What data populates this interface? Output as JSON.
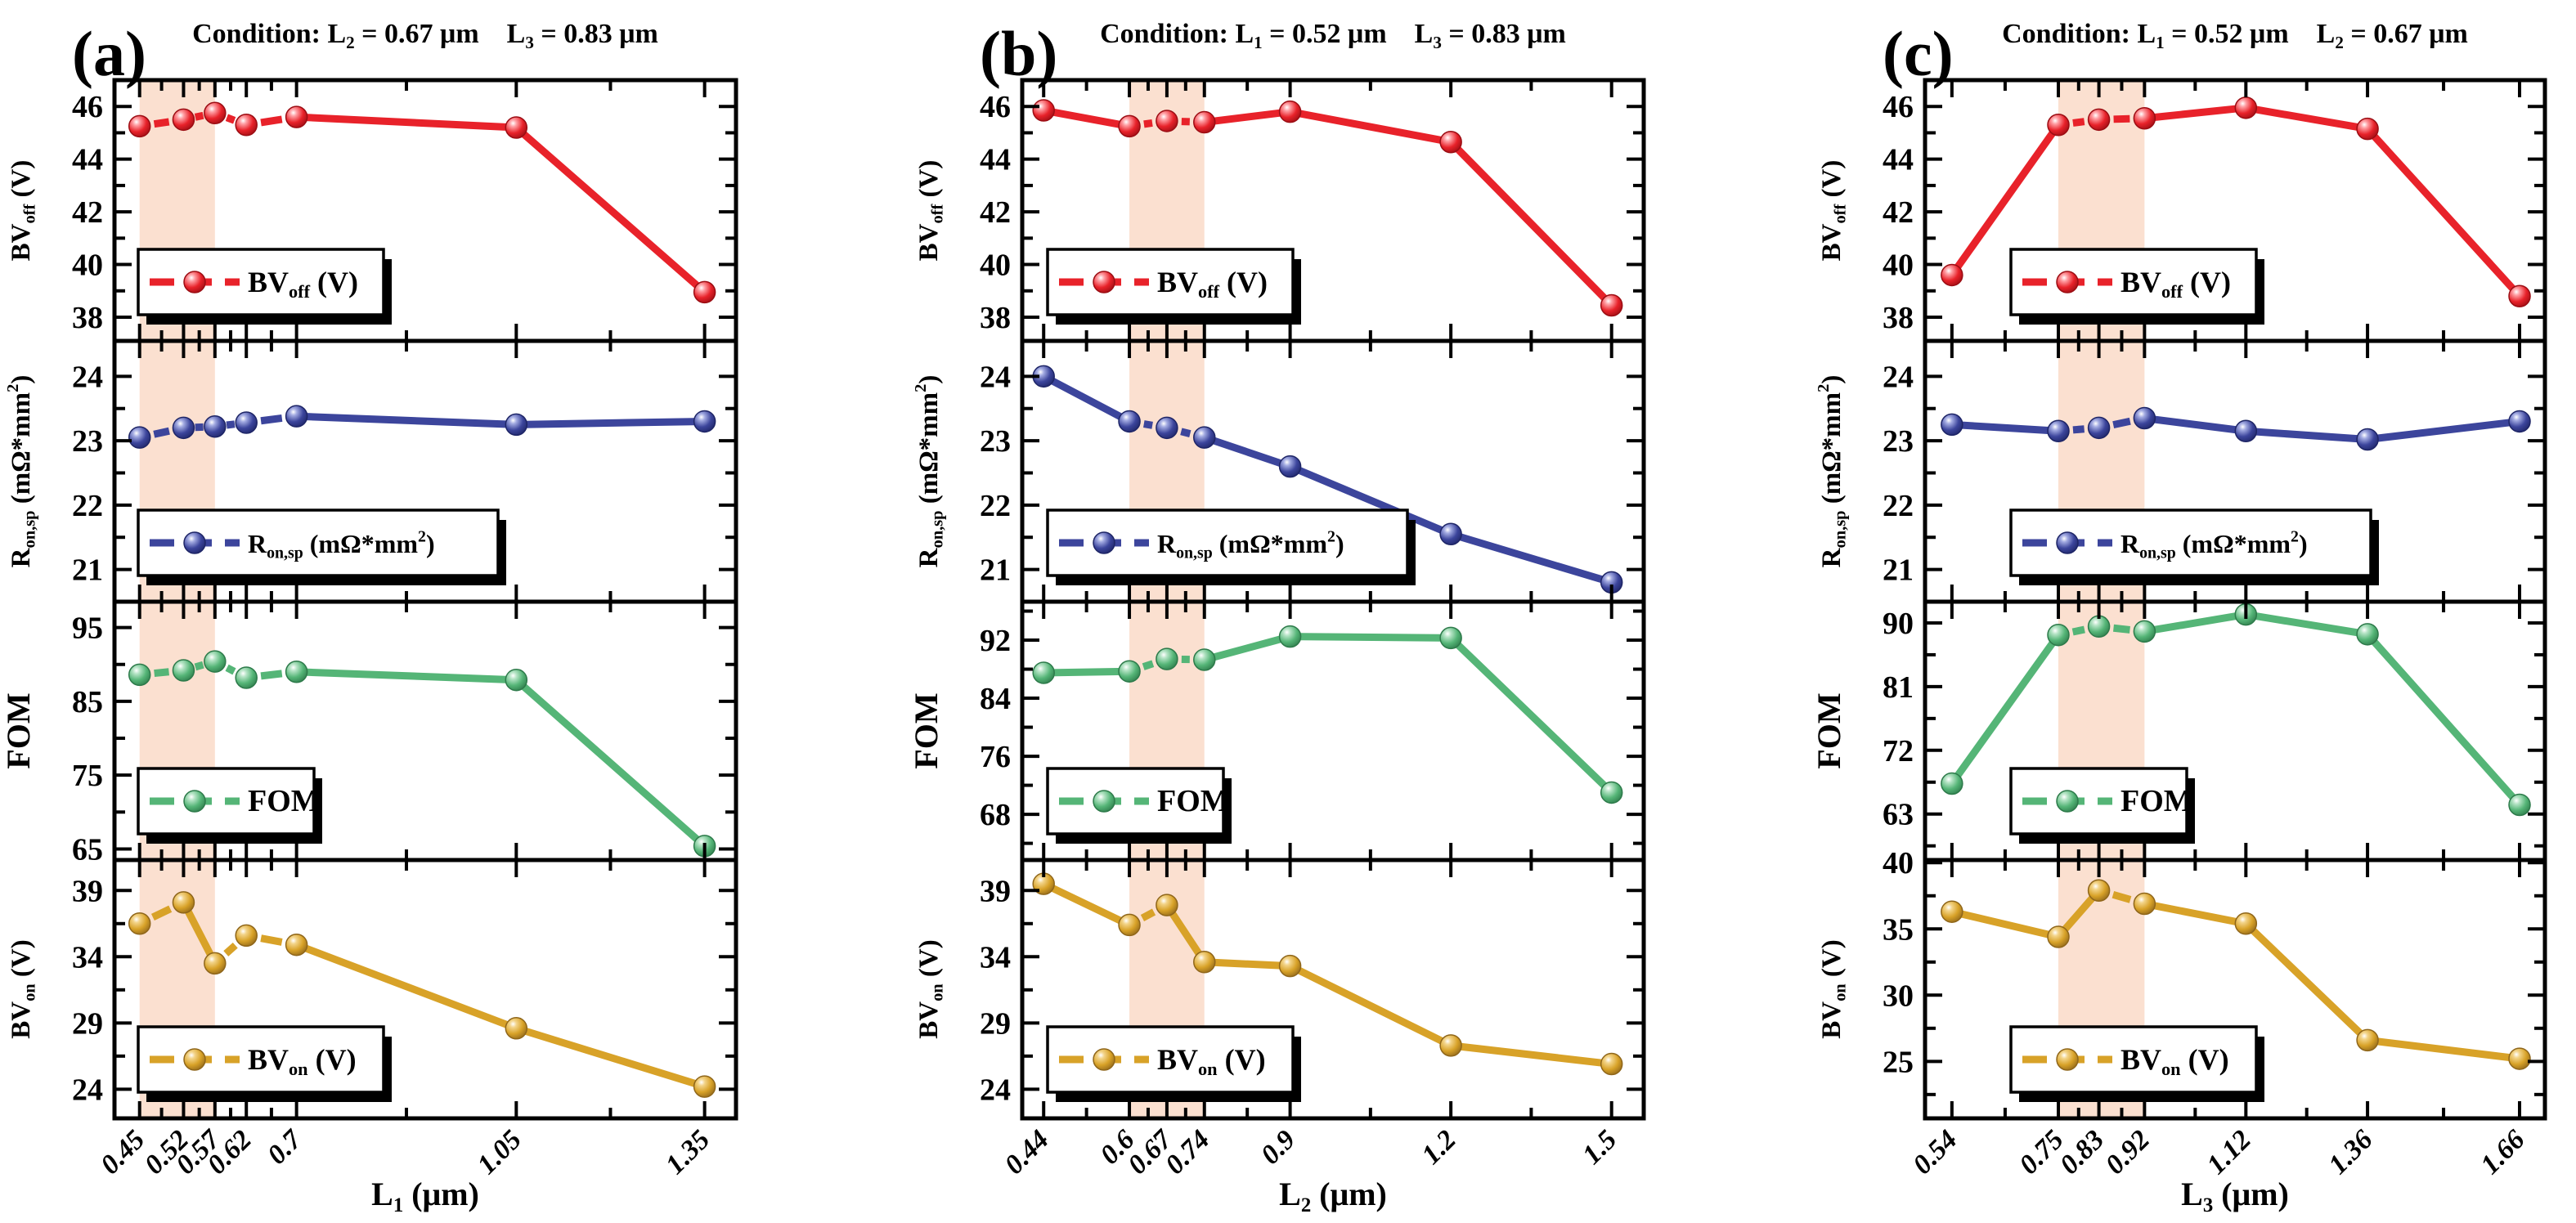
{
  "colors": {
    "red": {
      "base": "#e8222a",
      "dark": "#9b0d13",
      "light": "#ff9fa4"
    },
    "blue": {
      "base": "#3c459c",
      "dark": "#1e2566",
      "light": "#a3abe2"
    },
    "green": {
      "base": "#55b577",
      "dark": "#2d7a4a",
      "light": "#b6e4c6"
    },
    "gold": {
      "base": "#d8a228",
      "dark": "#8f661a",
      "light": "#f3d489"
    }
  },
  "highlight_color": "#fbe0d0",
  "chart_data": [
    {
      "type": "line",
      "panel_label": "(a)",
      "condition_segments": [
        {
          "t": "Condition: L"
        },
        {
          "sub": "2"
        },
        {
          "t": " = 0.67 μm    L"
        },
        {
          "sub": "3"
        },
        {
          "t": " = 0.83 μm"
        }
      ],
      "x": {
        "label_segments": [
          {
            "t": "L"
          },
          {
            "sub": "1"
          },
          {
            "t": " (μm)"
          }
        ],
        "values": [
          0.45,
          0.52,
          0.57,
          0.62,
          0.7,
          1.05,
          1.35
        ],
        "tick_labels": [
          "0.45",
          "0.52",
          "0.57",
          "0.62",
          "0.7",
          "1.05",
          "1.35"
        ],
        "range": [
          0.41,
          1.4
        ],
        "highlight_band": [
          0.45,
          0.57
        ]
      },
      "subplots": [
        {
          "key": "bv_off",
          "color_key": "red",
          "yticks": [
            38,
            40,
            42,
            44,
            46
          ],
          "yrange": [
            37.1,
            47.0
          ],
          "label_segments": [
            {
              "t": "BV"
            },
            {
              "sub": "off"
            },
            {
              "t": " (V)"
            }
          ],
          "values": [
            45.25,
            45.5,
            45.75,
            45.3,
            45.6,
            45.2,
            38.95
          ]
        },
        {
          "key": "r_onsp",
          "color_key": "blue",
          "yticks": [
            21,
            22,
            23,
            24
          ],
          "yrange": [
            20.5,
            24.55
          ],
          "label_segments": [
            {
              "t": "R"
            },
            {
              "sub": "on,sp"
            },
            {
              "t": " (mΩ*mm"
            },
            {
              "sup": "2"
            },
            {
              "t": ")"
            }
          ],
          "values": [
            23.05,
            23.2,
            23.22,
            23.28,
            23.38,
            23.25,
            23.3
          ]
        },
        {
          "key": "fom",
          "color_key": "green",
          "yticks": [
            65,
            75,
            85,
            95
          ],
          "yrange": [
            63.5,
            98.5
          ],
          "label_segments": [
            {
              "t": "FOM"
            }
          ],
          "values": [
            88.6,
            89.2,
            90.4,
            88.2,
            89.0,
            87.9,
            65.4
          ]
        },
        {
          "key": "bv_on",
          "color_key": "gold",
          "yticks": [
            24,
            29,
            34,
            39
          ],
          "yrange": [
            21.8,
            41.3
          ],
          "label_segments": [
            {
              "t": "BV"
            },
            {
              "sub": "on"
            },
            {
              "t": " (V)"
            }
          ],
          "values": [
            36.5,
            38.1,
            33.5,
            35.6,
            34.9,
            28.6,
            24.2
          ]
        }
      ]
    },
    {
      "type": "line",
      "panel_label": "(b)",
      "condition_segments": [
        {
          "t": "Condition: L"
        },
        {
          "sub": "1"
        },
        {
          "t": " = 0.52 μm    L"
        },
        {
          "sub": "3"
        },
        {
          "t": " = 0.83 μm"
        }
      ],
      "x": {
        "label_segments": [
          {
            "t": "L"
          },
          {
            "sub": "2"
          },
          {
            "t": " (μm)"
          }
        ],
        "values": [
          0.44,
          0.6,
          0.67,
          0.74,
          0.9,
          1.2,
          1.5
        ],
        "tick_labels": [
          "0.44",
          "0.6",
          "0.67",
          "0.74",
          "0.9",
          "1.2",
          "1.5"
        ],
        "range": [
          0.4,
          1.56
        ],
        "highlight_band": [
          0.6,
          0.74
        ]
      },
      "subplots": [
        {
          "key": "bv_off",
          "color_key": "red",
          "yticks": [
            38,
            40,
            42,
            44,
            46
          ],
          "yrange": [
            37.1,
            47.0
          ],
          "label_segments": [
            {
              "t": "BV"
            },
            {
              "sub": "off"
            },
            {
              "t": " (V)"
            }
          ],
          "values": [
            45.85,
            45.25,
            45.45,
            45.4,
            45.8,
            44.65,
            38.45
          ]
        },
        {
          "key": "r_onsp",
          "color_key": "blue",
          "yticks": [
            21,
            22,
            23,
            24
          ],
          "yrange": [
            20.5,
            24.55
          ],
          "label_segments": [
            {
              "t": "R"
            },
            {
              "sub": "on,sp"
            },
            {
              "t": " (mΩ*mm"
            },
            {
              "sup": "2"
            },
            {
              "t": ")"
            }
          ],
          "values": [
            24.0,
            23.3,
            23.2,
            23.05,
            22.6,
            21.55,
            20.8
          ]
        },
        {
          "key": "fom",
          "color_key": "green",
          "yticks": [
            68,
            76,
            84,
            92
          ],
          "yrange": [
            61.7,
            97.3
          ],
          "label_segments": [
            {
              "t": "FOM"
            }
          ],
          "values": [
            87.5,
            87.7,
            89.4,
            89.3,
            92.5,
            92.3,
            71.0
          ]
        },
        {
          "key": "bv_on",
          "color_key": "gold",
          "yticks": [
            24,
            29,
            34,
            39
          ],
          "yrange": [
            21.8,
            41.3
          ],
          "label_segments": [
            {
              "t": "BV"
            },
            {
              "sub": "on"
            },
            {
              "t": " (V)"
            }
          ],
          "values": [
            39.5,
            36.4,
            37.9,
            33.6,
            33.3,
            27.3,
            25.9
          ]
        }
      ]
    },
    {
      "type": "line",
      "panel_label": "(c)",
      "condition_segments": [
        {
          "t": "Condition: L"
        },
        {
          "sub": "1"
        },
        {
          "t": " = 0.52 μm    L"
        },
        {
          "sub": "2"
        },
        {
          "t": " = 0.67 μm"
        }
      ],
      "x": {
        "label_segments": [
          {
            "t": "L"
          },
          {
            "sub": "3"
          },
          {
            "t": " (μm)"
          }
        ],
        "values": [
          0.54,
          0.75,
          0.83,
          0.92,
          1.12,
          1.36,
          1.66
        ],
        "tick_labels": [
          "0.54",
          "0.75",
          "0.83",
          "0.92",
          "1.12",
          "1.36",
          "1.66"
        ],
        "range": [
          0.487,
          1.71
        ],
        "highlight_band": [
          0.75,
          0.92
        ]
      },
      "subplots": [
        {
          "key": "bv_off",
          "color_key": "red",
          "yticks": [
            38,
            40,
            42,
            44,
            46
          ],
          "yrange": [
            37.1,
            47.0
          ],
          "label_segments": [
            {
              "t": "BV"
            },
            {
              "sub": "off"
            },
            {
              "t": " (V)"
            }
          ],
          "values": [
            39.6,
            45.3,
            45.5,
            45.55,
            45.95,
            45.15,
            38.8
          ]
        },
        {
          "key": "r_onsp",
          "color_key": "blue",
          "yticks": [
            21,
            22,
            23,
            24
          ],
          "yrange": [
            20.5,
            24.55
          ],
          "label_segments": [
            {
              "t": "R"
            },
            {
              "sub": "on,sp"
            },
            {
              "t": " (mΩ*mm"
            },
            {
              "sup": "2"
            },
            {
              "t": ")"
            }
          ],
          "values": [
            23.25,
            23.15,
            23.2,
            23.35,
            23.15,
            23.02,
            23.3
          ]
        },
        {
          "key": "fom",
          "color_key": "green",
          "yticks": [
            63,
            72,
            81,
            90
          ],
          "yrange": [
            56.5,
            93.0
          ],
          "label_segments": [
            {
              "t": "FOM"
            }
          ],
          "values": [
            67.3,
            88.3,
            89.5,
            88.8,
            91.2,
            88.4,
            64.3
          ]
        },
        {
          "key": "bv_on",
          "color_key": "gold",
          "yticks": [
            25,
            30,
            35,
            40
          ],
          "yrange": [
            20.7,
            40.2
          ],
          "label_segments": [
            {
              "t": "BV"
            },
            {
              "sub": "on"
            },
            {
              "t": " (V)"
            }
          ],
          "values": [
            36.3,
            34.4,
            37.9,
            36.9,
            35.4,
            26.6,
            25.2
          ]
        }
      ]
    }
  ]
}
